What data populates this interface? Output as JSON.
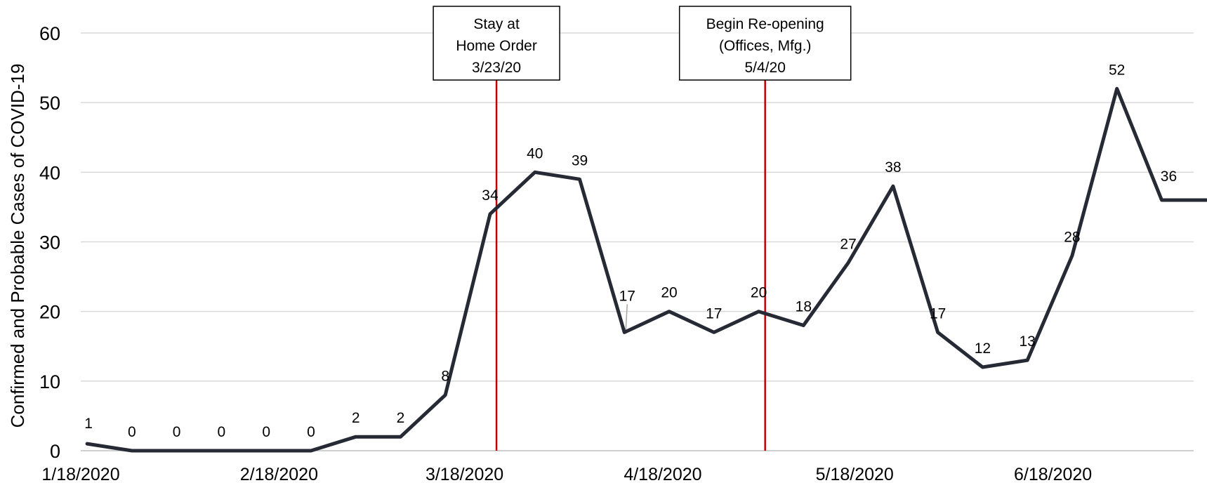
{
  "chart_data": {
    "type": "line",
    "title": "",
    "xlabel": "",
    "ylabel": "Confirmed and Probable Cases of COVID-19",
    "ylim": [
      0,
      60
    ],
    "yticks": [
      0,
      10,
      20,
      30,
      40,
      50,
      60
    ],
    "xlim": [
      "2020-01-18",
      "2020-07-10"
    ],
    "x_tick_labels": [
      {
        "date": "2020-01-18",
        "label": "1/18/2020"
      },
      {
        "date": "2020-02-18",
        "label": "2/18/2020"
      },
      {
        "date": "2020-03-18",
        "label": "3/18/2020"
      },
      {
        "date": "2020-04-18",
        "label": "4/18/2020"
      },
      {
        "date": "2020-05-18",
        "label": "5/18/2020"
      },
      {
        "date": "2020-06-18",
        "label": "6/18/2020"
      }
    ],
    "grid": true,
    "line_color": "#262a35",
    "event_line_color": "#c00000",
    "series": [
      {
        "x": [
          "2020-01-19",
          "2020-01-26",
          "2020-02-02",
          "2020-02-09",
          "2020-02-16",
          "2020-02-23",
          "2020-03-01",
          "2020-03-08",
          "2020-03-15",
          "2020-03-22",
          "2020-03-29",
          "2020-04-05",
          "2020-04-12",
          "2020-04-19",
          "2020-04-26",
          "2020-05-03",
          "2020-05-10",
          "2020-05-17",
          "2020-05-24",
          "2020-05-31",
          "2020-06-07",
          "2020-06-14",
          "2020-06-21",
          "2020-06-28",
          "2020-07-05",
          "2020-07-12"
        ],
        "values": [
          1,
          0,
          0,
          0,
          0,
          0,
          2,
          2,
          8,
          34,
          40,
          39,
          17,
          20,
          17,
          20,
          18,
          27,
          38,
          17,
          12,
          13,
          28,
          52,
          36,
          36
        ],
        "labels": [
          "1",
          "0",
          "0",
          "0",
          "0",
          "0",
          "2",
          "2",
          "8",
          "34",
          "40",
          "39",
          "17",
          "20",
          "17",
          "20",
          "18",
          "27",
          "38",
          "17",
          "12",
          "13",
          "28",
          "52",
          "36",
          ""
        ]
      }
    ],
    "annotations": [
      {
        "date": "2020-03-23",
        "lines": [
          "Stay at",
          "Home Order",
          "3/23/20"
        ]
      },
      {
        "date": "2020-05-04",
        "lines": [
          "Begin Re-opening",
          "(Offices, Mfg.)",
          "5/4/20"
        ]
      }
    ]
  }
}
